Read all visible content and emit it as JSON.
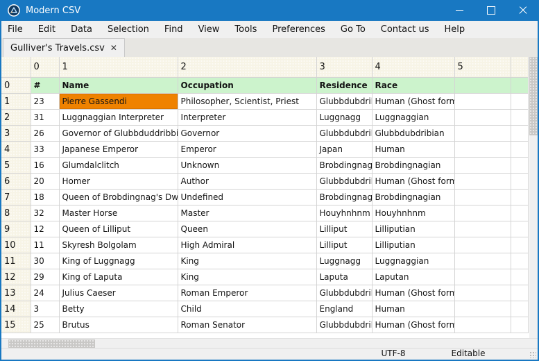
{
  "window": {
    "title": "Modern CSV",
    "controls": [
      {
        "name": "minimize"
      },
      {
        "name": "maximize"
      },
      {
        "name": "close"
      }
    ]
  },
  "menu": {
    "items": [
      "File",
      "Edit",
      "Data",
      "Selection",
      "Find",
      "View",
      "Tools",
      "Preferences",
      "Go To",
      "Contact us",
      "Help"
    ]
  },
  "tab": {
    "label": "Gulliver's Travels.csv",
    "close_glyph": "✕"
  },
  "grid": {
    "corner_label": "",
    "column_headers": [
      "0",
      "1",
      "2",
      "3",
      "4",
      "5",
      ""
    ],
    "selected": {
      "row": "1",
      "col": 1
    },
    "rows": [
      {
        "index": "0",
        "header": true,
        "cells": [
          "#",
          "Name",
          "Occupation",
          "Residence",
          "Race",
          "",
          ""
        ]
      },
      {
        "index": "1",
        "selected_col": 1,
        "cells": [
          "23",
          "Pierre Gassendi",
          "Philosopher, Scientist, Priest",
          "Glubbdubdrib",
          "Human (Ghost form)",
          "",
          ""
        ]
      },
      {
        "index": "2",
        "cells": [
          "31",
          "Luggnaggian Interpreter",
          "Interpreter",
          "Luggnagg",
          "Luggnaggian",
          "",
          ""
        ]
      },
      {
        "index": "3",
        "cells": [
          "26",
          "Governor of Glubbduddribbian",
          "Governor",
          "Glubbdubdrib",
          "Glubbdubdribian",
          "",
          ""
        ]
      },
      {
        "index": "4",
        "cells": [
          "33",
          "Japanese Emperor",
          "Emperor",
          "Japan",
          "Human",
          "",
          ""
        ]
      },
      {
        "index": "5",
        "cells": [
          "16",
          "Glumdalclitch",
          "Unknown",
          "Brobdingnag",
          "Brobdingnagian",
          "",
          ""
        ]
      },
      {
        "index": "6",
        "cells": [
          "20",
          "Homer",
          "Author",
          "Glubbdubdrib",
          "Human (Ghost form)",
          "",
          ""
        ]
      },
      {
        "index": "7",
        "cells": [
          "18",
          "Queen of Brobdingnag's Dwarf",
          "Undefined",
          "Brobdingnag",
          "Brobdingnagian",
          "",
          ""
        ]
      },
      {
        "index": "8",
        "cells": [
          "32",
          "Master Horse",
          "Master",
          "Houyhnhnm",
          "Houyhnhnm",
          "",
          ""
        ]
      },
      {
        "index": "9",
        "cells": [
          "12",
          "Queen of Lilliput",
          "Queen",
          "Lilliput",
          "Lilliputian",
          "",
          ""
        ]
      },
      {
        "index": "10",
        "cells": [
          "11",
          "Skyresh Bolgolam",
          "High Admiral",
          "Lilliput",
          "Lilliputian",
          "",
          ""
        ]
      },
      {
        "index": "11",
        "cells": [
          "30",
          "King of Luggnagg",
          "King",
          "Luggnagg",
          "Luggnaggian",
          "",
          ""
        ]
      },
      {
        "index": "12",
        "cells": [
          "29",
          "King of Laputa",
          "King",
          "Laputa",
          "Laputan",
          "",
          ""
        ]
      },
      {
        "index": "13",
        "cells": [
          "24",
          "Julius Caeser",
          "Roman Emperor",
          "Glubbdubdrib",
          "Human (Ghost form)",
          "",
          ""
        ]
      },
      {
        "index": "14",
        "cells": [
          "3",
          "Betty",
          "Child",
          "England",
          "Human",
          "",
          ""
        ]
      },
      {
        "index": "15",
        "cells": [
          "25",
          "Brutus",
          "Roman Senator",
          "Glubbdubdrib",
          "Human (Ghost form)",
          "",
          ""
        ]
      }
    ]
  },
  "status_bar": {
    "encoding": "UTF-8",
    "mode": "Editable"
  },
  "colors": {
    "titlebar": "#1878c2",
    "header_row_bg": "#ccf3cc",
    "selected_cell_bg": "#ef8200",
    "grid_header_bg": "#f7f4e6"
  }
}
